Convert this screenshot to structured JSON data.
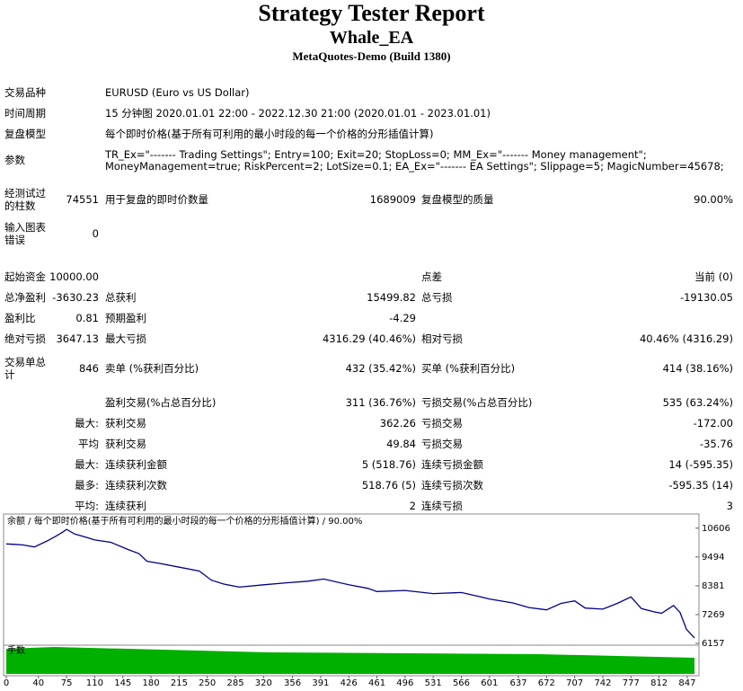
{
  "header": {
    "title": "Strategy Tester Report",
    "subtitle": "Whale_EA",
    "build": "MetaQuotes-Demo (Build 1380)"
  },
  "info": [
    {
      "label": "交易品种",
      "value": "EURUSD (Euro vs US Dollar)"
    },
    {
      "label": "时间周期",
      "value": "15 分钟图 2020.01.01 22:00 - 2022.12.30 21:00 (2020.01.01 - 2023.01.01)"
    },
    {
      "label": "复盘模型",
      "value": "每个即时价格(基于所有可利用的最小时段的每一个价格的分形插值计算)"
    },
    {
      "label": "参数",
      "value": [
        "TR_Ex=\"------- Trading Settings\"; Entry=100; Exit=20; StopLoss=0; MM_Ex=\"------- Money management\";",
        "MoneyManagement=true; RiskPercent=2; LotSize=0.1; EA_Ex=\"------- EA Settings\"; Slippage=5; MagicNumber=45678;"
      ]
    }
  ],
  "stats": {
    "rows": [
      [
        "经测试过的柱数",
        "74551",
        "用于复盘的即时价数量",
        "1689009",
        "复盘模型的质量",
        "90.00%"
      ],
      [
        "输入图表错误",
        "0",
        null,
        null,
        null,
        null
      ],
      [
        "起始资金",
        "10000.00",
        null,
        null,
        "点差",
        "当前 (0)"
      ],
      [
        "总净盈利",
        "-3630.23",
        "总获利",
        "15499.82",
        "总亏损",
        "-19130.05"
      ],
      [
        "盈利比",
        "0.81",
        "预期盈利",
        "-4.29",
        null,
        null
      ],
      [
        "绝对亏损",
        "3647.13",
        "最大亏损",
        "4316.29 (40.46%)",
        "相对亏损",
        "40.46% (4316.29)"
      ],
      [
        "交易单总计",
        "846",
        "卖单 (%获利百分比)",
        "432 (35.42%)",
        "买单 (%获利百分比)",
        "414 (38.16%)"
      ],
      [
        null,
        null,
        "盈利交易(%占总百分比)",
        "311 (36.76%)",
        "亏损交易(%占总百分比)",
        "535 (63.24%)"
      ],
      [
        null,
        "最大:",
        "获利交易",
        "362.26",
        "亏损交易",
        "-172.00"
      ],
      [
        null,
        "平均",
        "获利交易",
        "49.84",
        "亏损交易",
        "-35.76"
      ],
      [
        null,
        "最大:",
        "连续获利金额",
        "5 (518.76)",
        "连续亏损金额",
        "14 (-595.35)"
      ],
      [
        null,
        "最多:",
        "连续获利次数",
        "518.76 (5)",
        "连续亏损次数",
        "-595.35 (14)"
      ],
      [
        null,
        "平均:",
        "连续获利",
        "2",
        "连续亏损",
        "3"
      ]
    ]
  },
  "chart_data": {
    "type": "line",
    "title": "余额 / 每个即时价格(基于所有可利用的最小时段的每一个价格的分形插值计算) / 90.00%",
    "volume_label": "手数",
    "x": [
      0,
      10,
      20,
      35,
      50,
      62,
      70,
      75,
      85,
      100,
      110,
      130,
      150,
      165,
      175,
      190,
      215,
      240,
      255,
      270,
      290,
      320,
      350,
      375,
      395,
      426,
      450,
      461,
      496,
      531,
      566,
      590,
      601,
      630,
      650,
      672,
      690,
      707,
      720,
      742,
      760,
      777,
      790,
      805,
      815,
      830,
      838,
      846,
      856
    ],
    "series": [
      {
        "color": "#00008b",
        "values": [
          10000,
          9980,
          9960,
          9880,
          10100,
          10300,
          10450,
          10560,
          10380,
          10250,
          10150,
          10060,
          9800,
          9620,
          9330,
          9250,
          9100,
          8950,
          8600,
          8450,
          8330,
          8420,
          8500,
          8560,
          8640,
          8420,
          8280,
          8160,
          8200,
          8080,
          8120,
          7950,
          7870,
          7720,
          7540,
          7450,
          7700,
          7800,
          7520,
          7480,
          7700,
          7950,
          7500,
          7380,
          7320,
          7620,
          7350,
          6700,
          6370
        ]
      }
    ],
    "xlim": [
      0,
      856
    ],
    "ylim": [
      6157,
      11050
    ],
    "xticks": [
      0,
      40,
      75,
      110,
      145,
      180,
      215,
      250,
      285,
      320,
      356,
      391,
      426,
      461,
      496,
      531,
      566,
      601,
      637,
      672,
      707,
      742,
      777,
      812,
      847
    ],
    "yticks": [
      10606,
      9494,
      8381,
      7269,
      6157
    ]
  }
}
